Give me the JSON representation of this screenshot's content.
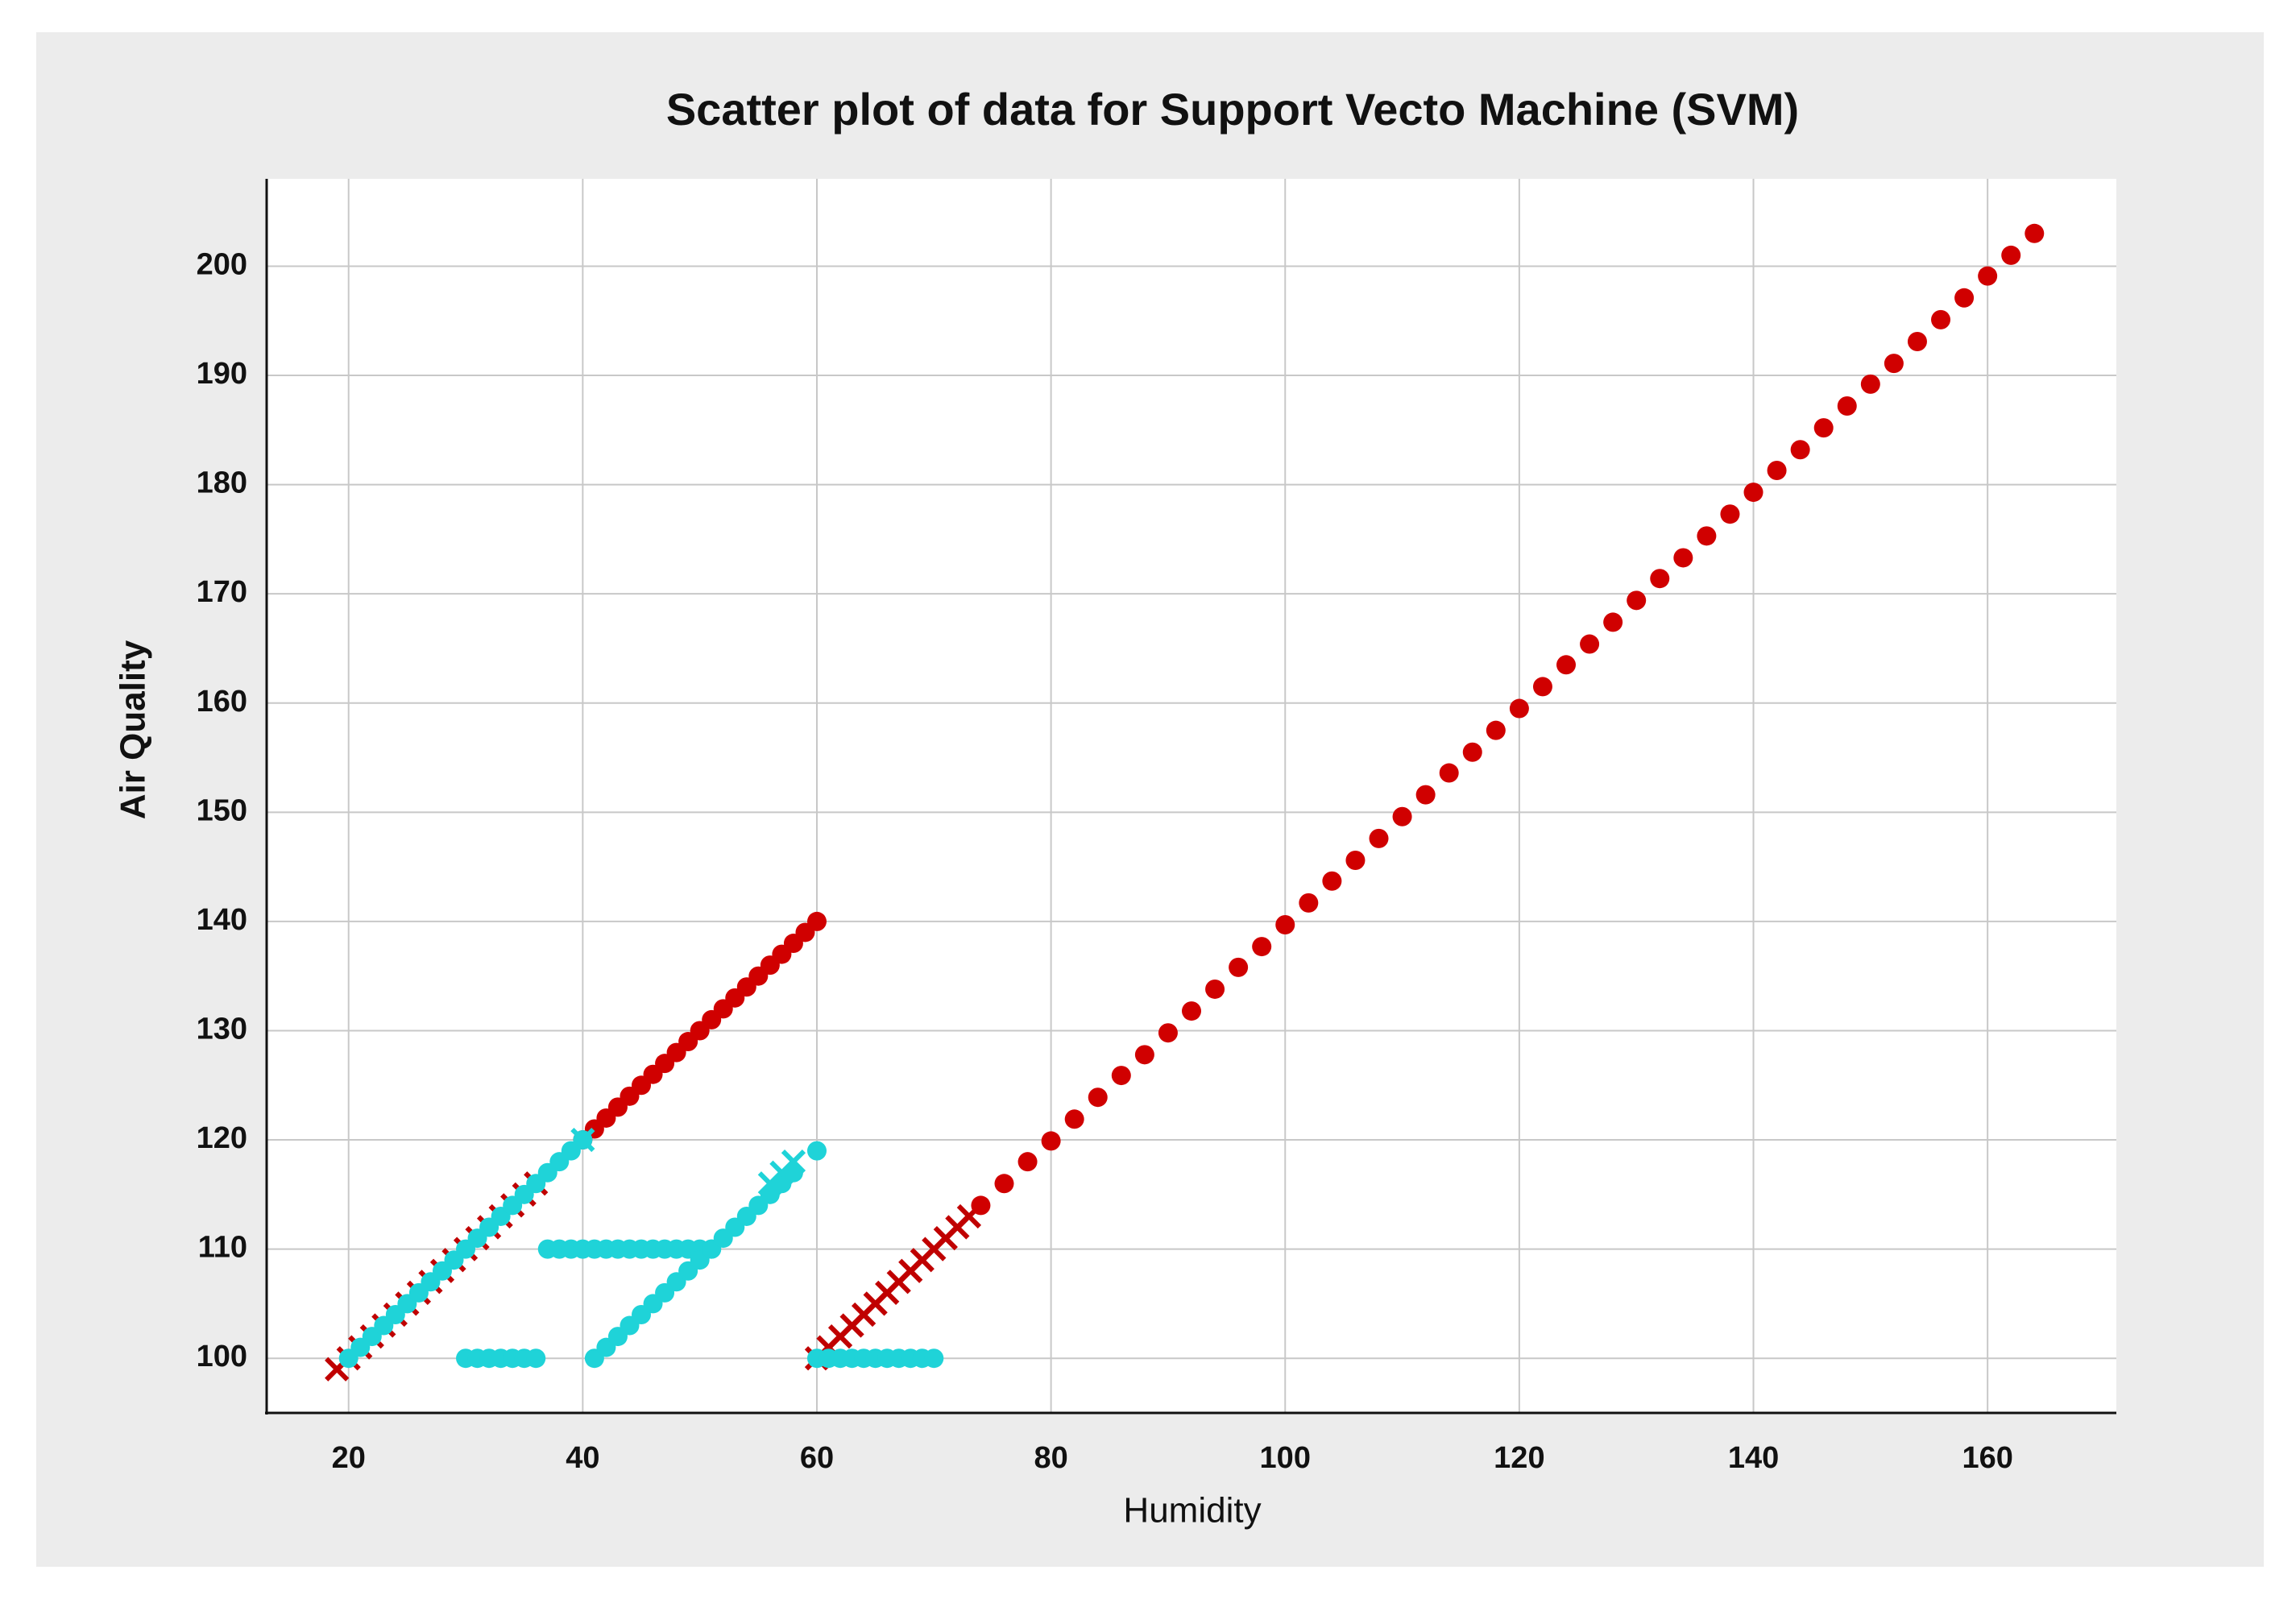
{
  "chart_data": {
    "type": "scatter",
    "title": "Scatter plot of data for Support Vecto Machine (SVM)",
    "x_label": "Humidity",
    "y_label": "Air Quality",
    "xlim": [
      13,
      171
    ],
    "ylim": [
      95,
      208
    ],
    "xticks": [
      20,
      40,
      60,
      80,
      100,
      120,
      140,
      160
    ],
    "yticks": [
      100,
      110,
      120,
      130,
      140,
      150,
      160,
      170,
      180,
      190,
      200
    ],
    "grid": true,
    "series": [
      {
        "color": "#c00000",
        "marker": "x",
        "x": [
          19,
          20,
          21,
          22,
          23,
          24,
          25,
          26,
          27,
          28,
          29,
          30,
          31,
          32,
          33,
          34,
          35,
          36
        ],
        "y": [
          99,
          100,
          101,
          102,
          103,
          104,
          105,
          106,
          107,
          108,
          109,
          110,
          111,
          112,
          113,
          114,
          115,
          116
        ]
      },
      {
        "color": "#c00000",
        "marker": "x",
        "x": [
          60,
          61,
          62,
          63,
          64,
          65,
          66,
          67,
          68,
          69,
          70,
          71,
          72,
          73
        ],
        "y": [
          100,
          101,
          102,
          103,
          104,
          105,
          106,
          107,
          108,
          109,
          110,
          111,
          112,
          113
        ]
      },
      {
        "color": "#d00000",
        "marker": "o",
        "x": [
          40,
          41,
          42,
          43,
          44,
          45,
          46,
          47,
          48,
          49,
          50,
          51,
          52,
          53,
          54,
          55,
          56,
          57,
          58,
          59,
          60
        ],
        "y": [
          120,
          121,
          122,
          123,
          124,
          125,
          126,
          127,
          128,
          129,
          130,
          131,
          132,
          133,
          134,
          135,
          136,
          137,
          138,
          139,
          140
        ]
      },
      {
        "color": "#d00000",
        "marker": "o",
        "x": [
          74,
          76,
          78,
          80,
          82,
          84,
          86,
          88,
          90,
          92,
          94,
          96,
          98,
          100,
          102,
          104,
          106,
          108,
          110,
          112,
          114,
          116,
          118,
          120,
          122,
          124,
          126,
          128,
          130,
          132,
          134,
          136,
          138,
          140,
          142,
          144,
          146,
          148,
          150,
          152,
          154,
          156,
          158,
          160,
          162,
          164
        ],
        "y": [
          114,
          116,
          118,
          119.9,
          121.9,
          123.9,
          125.9,
          127.8,
          129.8,
          131.8,
          133.8,
          135.8,
          137.7,
          139.7,
          141.7,
          143.7,
          145.6,
          147.6,
          149.6,
          151.6,
          153.6,
          155.5,
          157.5,
          159.5,
          161.5,
          163.5,
          165.4,
          167.4,
          169.4,
          171.4,
          173.3,
          175.3,
          177.3,
          179.3,
          181.3,
          183.2,
          185.2,
          187.2,
          189.2,
          191.1,
          193.1,
          195.1,
          197.1,
          199.1,
          201,
          203
        ]
      },
      {
        "color": "#1fd3d8",
        "marker": "o",
        "x": [
          20,
          21,
          22,
          23,
          24,
          25,
          26,
          27,
          28,
          29,
          30,
          31,
          32,
          33,
          34,
          35,
          36,
          37,
          38,
          39,
          40
        ],
        "y": [
          100,
          101,
          102,
          103,
          104,
          105,
          106,
          107,
          108,
          109,
          110,
          111,
          112,
          113,
          114,
          115,
          116,
          117,
          118,
          119,
          120
        ]
      },
      {
        "color": "#1fd3d8",
        "marker": "o",
        "x": [
          30,
          31,
          32,
          33,
          34,
          35,
          36
        ],
        "y": [
          100,
          100,
          100,
          100,
          100,
          100,
          100
        ]
      },
      {
        "color": "#1fd3d8",
        "marker": "o",
        "x": [
          37,
          38,
          39,
          40,
          41,
          42,
          43,
          44,
          45,
          46,
          47,
          48,
          49,
          50,
          51
        ],
        "y": [
          110,
          110,
          110,
          110,
          110,
          110,
          110,
          110,
          110,
          110,
          110,
          110,
          110,
          110,
          110
        ]
      },
      {
        "color": "#1fd3d8",
        "marker": "o",
        "x": [
          41,
          42,
          43,
          44,
          45,
          46,
          47,
          48,
          49,
          50,
          51,
          52,
          53,
          54,
          55,
          56,
          57,
          58,
          60
        ],
        "y": [
          100,
          101,
          102,
          103,
          104,
          105,
          106,
          107,
          108,
          109,
          110,
          111,
          112,
          113,
          114,
          115,
          116,
          117,
          119
        ]
      },
      {
        "color": "#1fd3d8",
        "marker": "o",
        "x": [
          60,
          61,
          62,
          63,
          64,
          65,
          66,
          67,
          68,
          69,
          70
        ],
        "y": [
          100,
          100,
          100,
          100,
          100,
          100,
          100,
          100,
          100,
          100,
          100
        ]
      },
      {
        "color": "#1fd3d8",
        "marker": "x",
        "x": [
          40,
          56,
          57,
          58
        ],
        "y": [
          120,
          116,
          117,
          118
        ]
      }
    ]
  }
}
